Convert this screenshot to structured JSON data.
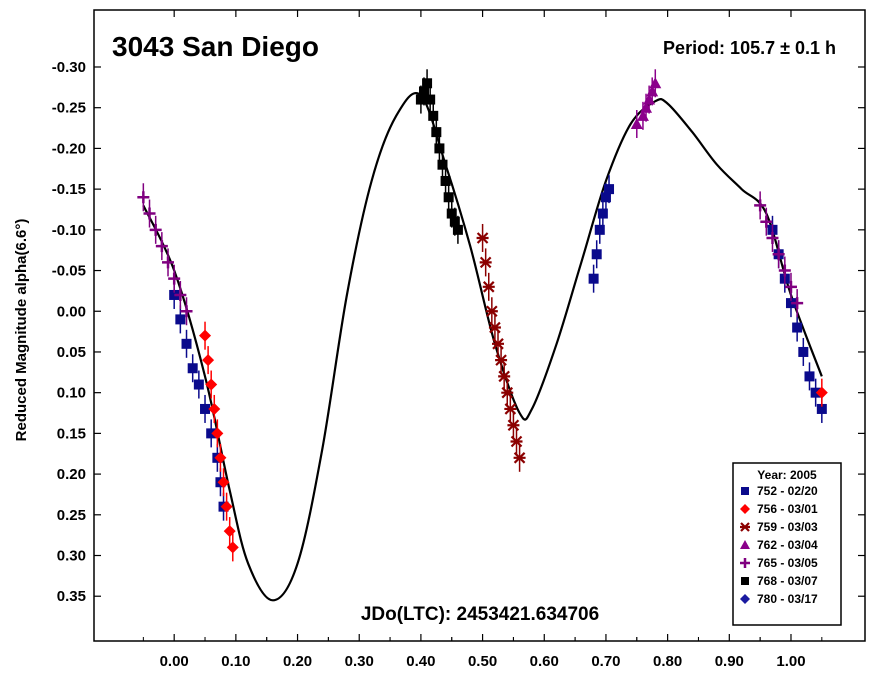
{
  "chart_data": {
    "type": "scatter",
    "title": "3043 San Diego",
    "subtitle": "Period: 105.7 ± 0.1 h",
    "annotation": "JDo(LTC): 2453421.634706",
    "xlabel": "",
    "ylabel": "Reduced Magnitude alpha(6.6°)",
    "xlim": [
      -0.13,
      1.12
    ],
    "ylim": [
      0.405,
      -0.37
    ],
    "y_inverted": true,
    "grid": false,
    "legend_placement": "bottom-right",
    "legend_title": "Year: 2005",
    "x_ticks": [
      {
        "v": 0.0,
        "label": "0.00"
      },
      {
        "v": 0.1,
        "label": "0.10"
      },
      {
        "v": 0.2,
        "label": "0.20"
      },
      {
        "v": 0.3,
        "label": "0.30"
      },
      {
        "v": 0.4,
        "label": "0.40"
      },
      {
        "v": 0.5,
        "label": "0.50"
      },
      {
        "v": 0.6,
        "label": "0.60"
      },
      {
        "v": 0.7,
        "label": "0.70"
      },
      {
        "v": 0.8,
        "label": "0.80"
      },
      {
        "v": 0.9,
        "label": "0.90"
      },
      {
        "v": 1.0,
        "label": "1.00"
      }
    ],
    "y_ticks": [
      {
        "v": -0.3,
        "label": "-0.30"
      },
      {
        "v": -0.25,
        "label": "-0.25"
      },
      {
        "v": -0.2,
        "label": "-0.20"
      },
      {
        "v": -0.15,
        "label": "-0.15"
      },
      {
        "v": -0.1,
        "label": "-0.10"
      },
      {
        "v": -0.05,
        "label": "-0.05"
      },
      {
        "v": 0.0,
        "label": "0.00"
      },
      {
        "v": 0.05,
        "label": "0.05"
      },
      {
        "v": 0.1,
        "label": "0.10"
      },
      {
        "v": 0.15,
        "label": "0.15"
      },
      {
        "v": 0.2,
        "label": "0.20"
      },
      {
        "v": 0.25,
        "label": "0.25"
      },
      {
        "v": 0.3,
        "label": "0.30"
      },
      {
        "v": 0.35,
        "label": "0.35"
      }
    ],
    "fit_curve": {
      "x": [
        -0.05,
        0.0,
        0.05,
        0.09,
        0.12,
        0.16,
        0.2,
        0.24,
        0.28,
        0.32,
        0.36,
        0.4,
        0.44,
        0.48,
        0.52,
        0.56,
        0.58,
        0.62,
        0.66,
        0.7,
        0.74,
        0.78,
        0.8,
        0.84,
        0.88,
        0.92,
        0.96,
        1.0,
        1.05
      ],
      "y": [
        -0.13,
        -0.05,
        0.08,
        0.22,
        0.31,
        0.355,
        0.31,
        0.17,
        -0.02,
        -0.16,
        -0.24,
        -0.265,
        -0.18,
        -0.08,
        0.04,
        0.125,
        0.12,
        0.04,
        -0.06,
        -0.16,
        -0.23,
        -0.258,
        -0.255,
        -0.22,
        -0.18,
        -0.15,
        -0.12,
        -0.02,
        0.08
      ]
    },
    "series": [
      {
        "name": "752 - 02/20",
        "marker": "square",
        "color": "#0a0a8c",
        "x": [
          0.0,
          0.01,
          0.02,
          0.03,
          0.04,
          0.05,
          0.06,
          0.07,
          0.075,
          0.08,
          0.68,
          0.685,
          0.69,
          0.695,
          0.7,
          0.705,
          0.97,
          0.98,
          0.99,
          1.0,
          1.01,
          1.02,
          1.03,
          1.04,
          1.05
        ],
        "y": [
          -0.02,
          0.01,
          0.04,
          0.07,
          0.09,
          0.12,
          0.15,
          0.18,
          0.21,
          0.24,
          -0.04,
          -0.07,
          -0.1,
          -0.12,
          -0.14,
          -0.15,
          -0.1,
          -0.07,
          -0.04,
          -0.01,
          0.02,
          0.05,
          0.08,
          0.1,
          0.12
        ]
      },
      {
        "name": "756 - 03/01",
        "marker": "diamond",
        "color": "#ff0000",
        "x": [
          0.05,
          0.055,
          0.06,
          0.065,
          0.07,
          0.075,
          0.08,
          0.085,
          0.09,
          0.095,
          1.05
        ],
        "y": [
          0.03,
          0.06,
          0.09,
          0.12,
          0.15,
          0.18,
          0.21,
          0.24,
          0.27,
          0.29,
          0.1
        ]
      },
      {
        "name": "759 - 03/03",
        "marker": "asterisk",
        "color": "#8b0000",
        "x": [
          0.5,
          0.505,
          0.51,
          0.515,
          0.52,
          0.525,
          0.53,
          0.535,
          0.54,
          0.545,
          0.55,
          0.555,
          0.56
        ],
        "y": [
          -0.09,
          -0.06,
          -0.03,
          0.0,
          0.02,
          0.04,
          0.06,
          0.08,
          0.1,
          0.12,
          0.14,
          0.16,
          0.18
        ]
      },
      {
        "name": "762 - 03/04",
        "marker": "triangle",
        "color": "#8b008b",
        "x": [
          0.75,
          0.76,
          0.765,
          0.77,
          0.775,
          0.78
        ],
        "y": [
          -0.23,
          -0.24,
          -0.25,
          -0.26,
          -0.27,
          -0.28
        ]
      },
      {
        "name": "765 - 03/05",
        "marker": "plus",
        "color": "#800080",
        "x": [
          -0.05,
          -0.04,
          -0.03,
          -0.02,
          -0.01,
          0.0,
          0.01,
          0.02,
          0.95,
          0.96,
          0.97,
          0.98,
          0.99,
          1.0,
          1.01
        ],
        "y": [
          -0.14,
          -0.12,
          -0.1,
          -0.08,
          -0.06,
          -0.04,
          -0.02,
          0.0,
          -0.13,
          -0.11,
          -0.09,
          -0.07,
          -0.05,
          -0.03,
          -0.01
        ]
      },
      {
        "name": "768 - 03/07",
        "marker": "filled-square",
        "color": "#000000",
        "x": [
          0.4,
          0.405,
          0.41,
          0.415,
          0.42,
          0.425,
          0.43,
          0.435,
          0.44,
          0.445,
          0.45,
          0.455,
          0.46
        ],
        "y": [
          -0.26,
          -0.27,
          -0.28,
          -0.26,
          -0.24,
          -0.22,
          -0.2,
          -0.18,
          -0.16,
          -0.14,
          -0.12,
          -0.11,
          -0.1
        ]
      },
      {
        "name": "780 - 03/17",
        "marker": "diamond",
        "color": "#1a1aa0",
        "x": [],
        "y": []
      }
    ]
  }
}
